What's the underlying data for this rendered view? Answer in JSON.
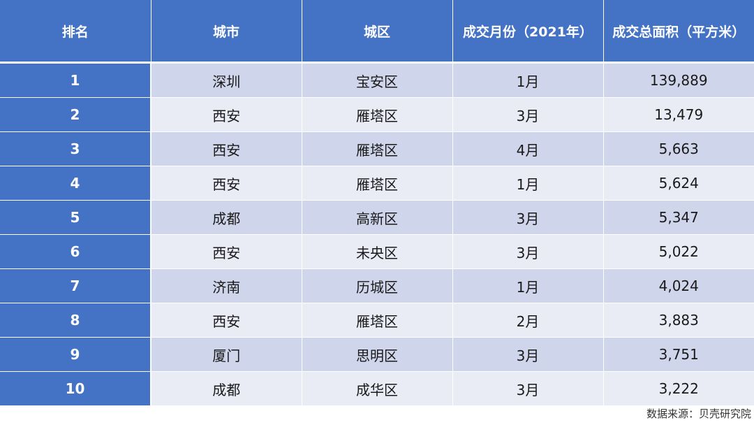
{
  "table": {
    "headers": [
      "排名",
      "城市",
      "城区",
      "成交月份（2021年）",
      "成交总面积（平方米）"
    ],
    "rows": [
      [
        "1",
        "深圳",
        "宝安区",
        "1月",
        "139,889"
      ],
      [
        "2",
        "西安",
        "雁塔区",
        "3月",
        "13,479"
      ],
      [
        "3",
        "西安",
        "雁塔区",
        "4月",
        "5,663"
      ],
      [
        "4",
        "西安",
        "雁塔区",
        "1月",
        "5,624"
      ],
      [
        "5",
        "成都",
        "高新区",
        "3月",
        "5,347"
      ],
      [
        "6",
        "西安",
        "未央区",
        "3月",
        "5,022"
      ],
      [
        "7",
        "济南",
        "历城区",
        "1月",
        "4,024"
      ],
      [
        "8",
        "西安",
        "雁塔区",
        "2月",
        "3,883"
      ],
      [
        "9",
        "厦门",
        "思明区",
        "3月",
        "3,751"
      ],
      [
        "10",
        "成都",
        "成华区",
        "3月",
        "3,222"
      ]
    ]
  },
  "source": "数据来源：贝壳研究院",
  "colors": {
    "header_bg": "#4472c4",
    "row_odd": "#cfd5ea",
    "row_even": "#e9ebf5"
  }
}
